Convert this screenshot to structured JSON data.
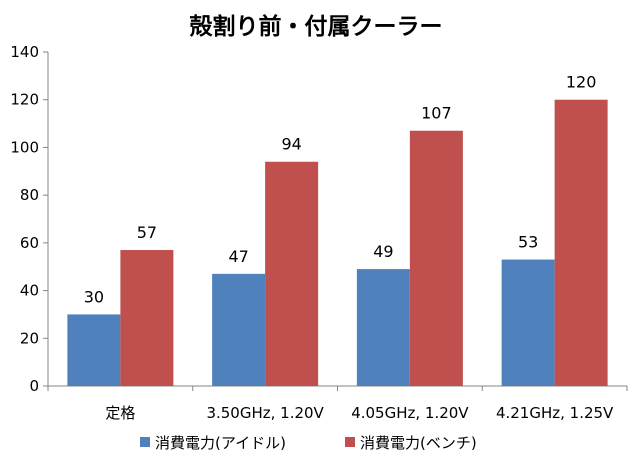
{
  "chart_data": {
    "type": "bar",
    "title": "殻割り前・付属クーラー",
    "categories": [
      "定格",
      "3.50GHz, 1.20V",
      "4.05GHz, 1.20V",
      "4.21GHz, 1.25V"
    ],
    "series": [
      {
        "name": "消費電力(アイドル)",
        "color": "#4F81BD",
        "values": [
          30,
          47,
          49,
          53
        ]
      },
      {
        "name": "消費電力(ベンチ)",
        "color": "#C0504D",
        "values": [
          57,
          94,
          107,
          120
        ]
      }
    ],
    "ylim": [
      0,
      140
    ],
    "yticks": [
      0,
      20,
      40,
      60,
      80,
      100,
      120,
      140
    ],
    "grid": false,
    "legend": "bottom",
    "data_labels": true
  }
}
